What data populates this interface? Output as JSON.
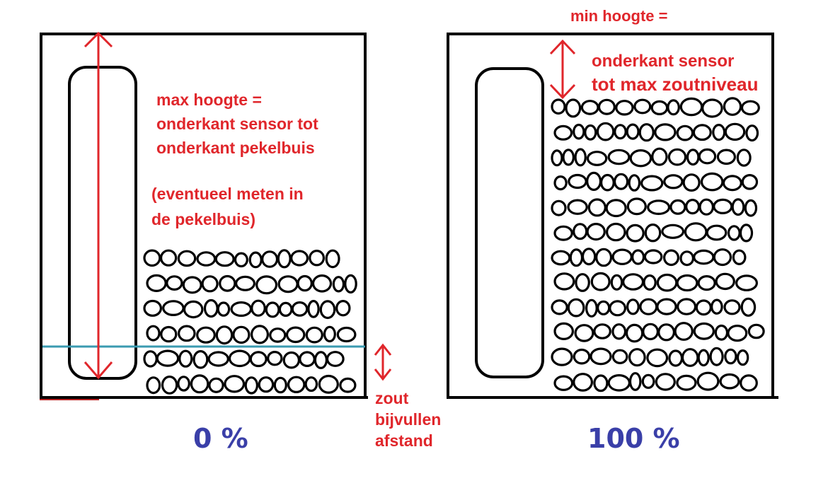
{
  "left_panel": {
    "height_label": "max hoogte =",
    "height_desc_line1": "onderkant sensor tot",
    "height_desc_line2": "onderkant pekelbuis",
    "note_line1": "(eventueel meten in",
    "note_line2": "de pekelbuis)",
    "percent": "0 %"
  },
  "right_panel": {
    "height_label": "min hoogte =",
    "desc_line1": "onderkant sensor",
    "desc_line2": "tot max zoutniveau",
    "percent": "100 %"
  },
  "refill": {
    "line1": "zout",
    "line2": "bijvullen",
    "line3": "afstand"
  },
  "colors": {
    "annotation": "#e0262b",
    "percent": "#3a3fa8",
    "refill_line": "#3a9ab0",
    "outline": "#000000"
  }
}
